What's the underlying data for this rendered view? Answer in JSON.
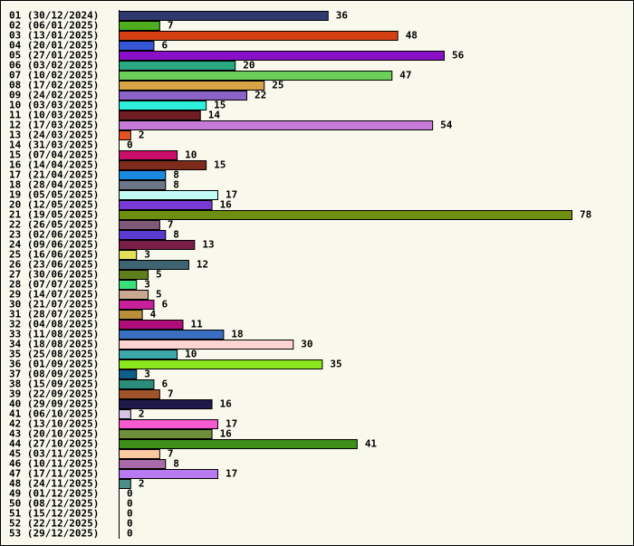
{
  "chart_data": {
    "type": "bar",
    "orientation": "horizontal",
    "title": "",
    "xlabel": "",
    "ylabel": "",
    "xlim": [
      0,
      78
    ],
    "grid": false,
    "legend": "none",
    "categories": [
      "01 (30/12/2024)",
      "02 (06/01/2025)",
      "03 (13/01/2025)",
      "04 (20/01/2025)",
      "05 (27/01/2025)",
      "06 (03/02/2025)",
      "07 (10/02/2025)",
      "08 (17/02/2025)",
      "09 (24/02/2025)",
      "10 (03/03/2025)",
      "11 (10/03/2025)",
      "12 (17/03/2025)",
      "13 (24/03/2025)",
      "14 (31/03/2025)",
      "15 (07/04/2025)",
      "16 (14/04/2025)",
      "17 (21/04/2025)",
      "18 (28/04/2025)",
      "19 (05/05/2025)",
      "20 (12/05/2025)",
      "21 (19/05/2025)",
      "22 (26/05/2025)",
      "23 (02/06/2025)",
      "24 (09/06/2025)",
      "25 (16/06/2025)",
      "26 (23/06/2025)",
      "27 (30/06/2025)",
      "28 (07/07/2025)",
      "29 (14/07/2025)",
      "30 (21/07/2025)",
      "31 (28/07/2025)",
      "32 (04/08/2025)",
      "33 (11/08/2025)",
      "34 (18/08/2025)",
      "35 (25/08/2025)",
      "36 (01/09/2025)",
      "37 (08/09/2025)",
      "38 (15/09/2025)",
      "39 (22/09/2025)",
      "40 (29/09/2025)",
      "41 (06/10/2025)",
      "42 (13/10/2025)",
      "43 (20/10/2025)",
      "44 (27/10/2025)",
      "45 (03/11/2025)",
      "46 (10/11/2025)",
      "47 (17/11/2025)",
      "48 (24/11/2025)",
      "49 (01/12/2025)",
      "50 (08/12/2025)",
      "51 (15/12/2025)",
      "52 (22/12/2025)",
      "53 (29/12/2025)"
    ],
    "values": [
      36,
      7,
      48,
      6,
      56,
      20,
      47,
      25,
      22,
      15,
      14,
      54,
      2,
      0,
      10,
      15,
      8,
      8,
      17,
      16,
      78,
      7,
      8,
      13,
      3,
      12,
      5,
      3,
      5,
      6,
      4,
      11,
      18,
      30,
      10,
      35,
      3,
      6,
      7,
      16,
      2,
      17,
      16,
      41,
      7,
      8,
      17,
      2,
      0,
      0,
      0,
      0,
      0
    ],
    "colors": [
      "#2e3a6e",
      "#4fae1e",
      "#d44014",
      "#3656d6",
      "#8a10c8",
      "#2aa882",
      "#6ccf5a",
      "#d8a446",
      "#8a62c8",
      "#2cf0dc",
      "#6e1e22",
      "#c87ad8",
      "#e25428",
      "#f8f8ec",
      "#c80e68",
      "#7e2a1a",
      "#1a8ae0",
      "#6c7888",
      "#c0fcf4",
      "#7a3ad8",
      "#6e8e10",
      "#7e5a78",
      "#5a3ad0",
      "#7a2048",
      "#e4e05a",
      "#3e6472",
      "#5e7e1e",
      "#3ae07a",
      "#c8a890",
      "#c8209a",
      "#b88e3a",
      "#b00e7a",
      "#3a6ec0",
      "#fcd4d4",
      "#3aa8a8",
      "#8ce81e",
      "#0e5e8a",
      "#2a8e7a",
      "#a0542a",
      "#201a4a",
      "#d8c4e4",
      "#f85ad0",
      "#6e8e3a",
      "#3e8e1a",
      "#fcc8a0",
      "#a86aa8",
      "#b87af0",
      "#4e8e8a",
      "#f8f8ec",
      "#f8f8ec",
      "#f8f8ec",
      "#f8f8ec",
      "#f8f8ec"
    ]
  }
}
